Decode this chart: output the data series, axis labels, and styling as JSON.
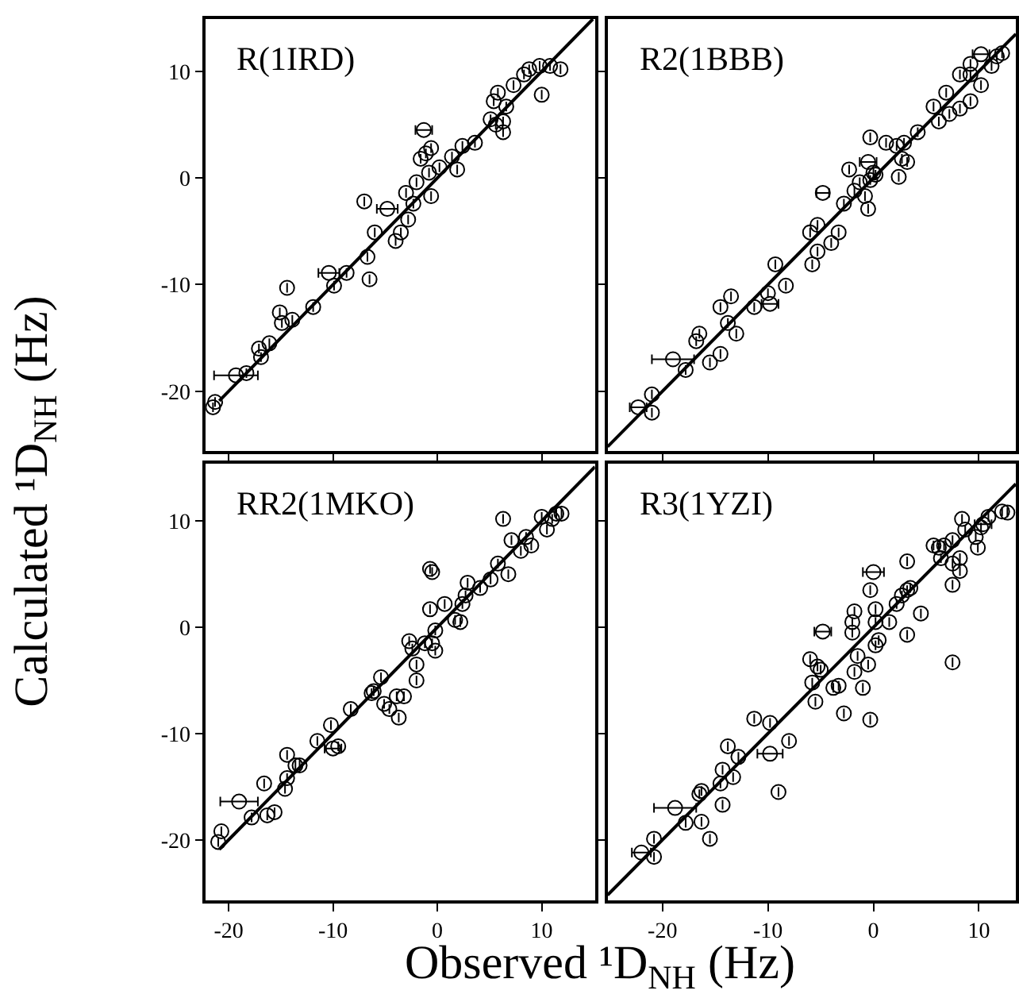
{
  "chart_data": [
    {
      "type": "scatter",
      "title": "R(1IRD)",
      "ylabel": "Calculated ¹D$_{NH}$ (Hz)",
      "xlim": [
        -22.2,
        15.1
      ],
      "ylim": [
        -25.6,
        14.9
      ],
      "xticks": [
        -20,
        -10,
        0,
        10
      ],
      "yticks": [
        -20,
        -10,
        0,
        10
      ],
      "tick_labels": "y",
      "series": [
        {
          "marker": "circle",
          "color": "#000000",
          "x": [
            -21.3,
            -21.5,
            -19.3,
            -18.3,
            -17.1,
            -16.9,
            -16.1,
            -15.1,
            -14.9,
            -13.9,
            -14.4,
            -11.9,
            -10.4,
            -9.9,
            -8.7,
            -6.7,
            -6.5,
            -6.0,
            -4.8,
            -7.0,
            -4.0,
            -3.5,
            -2.8,
            -3.0,
            -2.3,
            -2.0,
            -1.6,
            -0.8,
            -0.6,
            -1.1,
            -0.6,
            0.2,
            1.4,
            1.9,
            2.4,
            3.6,
            -1.3,
            5.1,
            5.6,
            6.3,
            6.6,
            6.3,
            5.8,
            5.4,
            7.3,
            8.3,
            8.8,
            9.8,
            10.8,
            11.8,
            10.0
          ],
          "values": [
            -21.0,
            -21.5,
            -18.5,
            -18.3,
            -16.0,
            -16.8,
            -15.5,
            -12.6,
            -13.6,
            -13.3,
            -10.3,
            -12.1,
            -8.9,
            -10.1,
            -8.9,
            -7.4,
            -9.5,
            -5.1,
            -2.9,
            -2.2,
            -5.9,
            -5.1,
            -3.9,
            -1.4,
            -2.4,
            -0.4,
            1.8,
            0.5,
            -1.7,
            2.3,
            2.8,
            1.0,
            2.0,
            0.8,
            3.0,
            3.3,
            4.5,
            5.5,
            5.0,
            5.3,
            6.7,
            4.3,
            8.0,
            7.2,
            8.7,
            9.7,
            10.2,
            10.5,
            10.5,
            10.2,
            7.8
          ],
          "xerrors": [
            null,
            null,
            2.1,
            null,
            null,
            null,
            null,
            null,
            null,
            null,
            null,
            null,
            1.0,
            null,
            null,
            null,
            null,
            null,
            1.0,
            null,
            null,
            null,
            null,
            null,
            null,
            null,
            null,
            null,
            null,
            null,
            null,
            null,
            null,
            null,
            null,
            null,
            0.8,
            null,
            null,
            null,
            null,
            null,
            null,
            null,
            null,
            null,
            null,
            null,
            null,
            null,
            null
          ]
        },
        {
          "type": "line",
          "color": "#000000",
          "line_style": "solid",
          "x": [
            -20.9,
            14.9
          ],
          "values": [
            -20.9,
            14.9
          ]
        }
      ]
    },
    {
      "type": "scatter",
      "title": "R2(1BBB)",
      "xlim": [
        -25.2,
        13.5
      ],
      "ylim": [
        -25.6,
        14.9
      ],
      "xticks": [
        -20,
        -10,
        0,
        10
      ],
      "yticks": [
        -20,
        -10,
        0,
        10
      ],
      "tick_labels": false,
      "series": [
        {
          "marker": "circle",
          "color": "#000000",
          "x": [
            -22.3,
            -21.0,
            -21.0,
            -19.0,
            -17.8,
            -16.5,
            -16.8,
            -15.5,
            -14.5,
            -14.5,
            -13.5,
            -13.8,
            -13.0,
            -11.3,
            -10.0,
            -9.8,
            -8.3,
            -9.3,
            -5.8,
            -5.3,
            -4.0,
            -3.3,
            -6.0,
            -5.3,
            -4.8,
            -2.8,
            -2.3,
            -1.8,
            -1.3,
            -0.5,
            -0.5,
            -0.3,
            0.0,
            -0.8,
            0.2,
            -0.3,
            1.2,
            2.2,
            2.9,
            2.7,
            3.2,
            2.4,
            4.2,
            6.2,
            5.7,
            7.2,
            8.2,
            6.9,
            8.2,
            9.2,
            9.2,
            10.2,
            9.2,
            10.2,
            11.2,
            11.7,
            12.2
          ],
          "values": [
            -21.5,
            -22.0,
            -20.3,
            -17.0,
            -18.0,
            -14.6,
            -15.3,
            -17.3,
            -16.5,
            -12.1,
            -11.1,
            -13.6,
            -14.6,
            -12.1,
            -10.8,
            -11.8,
            -10.1,
            -8.1,
            -8.1,
            -6.9,
            -6.1,
            -5.1,
            -5.1,
            -4.4,
            -1.4,
            -2.4,
            0.8,
            -1.2,
            -0.4,
            1.5,
            -2.9,
            -0.2,
            0.5,
            -1.7,
            0.3,
            3.8,
            3.3,
            3.0,
            3.3,
            1.8,
            1.5,
            0.1,
            4.3,
            5.3,
            6.7,
            6.0,
            6.5,
            8.0,
            9.7,
            7.2,
            9.7,
            8.7,
            10.7,
            11.6,
            10.5,
            11.4,
            11.7
          ],
          "xerrors": [
            0.8,
            null,
            null,
            2.0,
            null,
            null,
            null,
            null,
            null,
            null,
            null,
            null,
            null,
            null,
            null,
            0.8,
            null,
            null,
            null,
            null,
            null,
            null,
            null,
            null,
            0.6,
            null,
            null,
            null,
            null,
            0.8,
            null,
            null,
            null,
            null,
            null,
            null,
            null,
            null,
            null,
            null,
            null,
            null,
            null,
            null,
            null,
            null,
            null,
            null,
            null,
            null,
            null,
            null,
            null,
            0.8,
            null,
            null,
            null
          ]
        },
        {
          "type": "line",
          "color": "#000000",
          "line_style": "solid",
          "x": [
            -25.2,
            13.5
          ],
          "values": [
            -25.2,
            13.5
          ]
        }
      ]
    },
    {
      "type": "scatter",
      "title": "RR2(1MKO)",
      "xlabel": "Observed ¹D$_{NH}$ (Hz)",
      "xlim": [
        -22.2,
        15.1
      ],
      "ylim": [
        -25.7,
        15.4
      ],
      "xticks": [
        -20,
        -10,
        0,
        10
      ],
      "yticks": [
        -20,
        -10,
        0,
        10
      ],
      "series": [
        {
          "marker": "circle",
          "color": "#000000",
          "x": [
            -20.7,
            -21.0,
            -19.0,
            -17.8,
            -16.3,
            -15.6,
            -16.6,
            -14.4,
            -14.6,
            -14.4,
            -13.6,
            -13.2,
            -11.5,
            -10.0,
            -9.5,
            -10.2,
            -8.3,
            -6.3,
            -6.1,
            -5.4,
            -5.1,
            -4.6,
            -3.9,
            -3.2,
            -3.7,
            -2.7,
            -2.4,
            -2.0,
            -2.0,
            -0.5,
            -0.2,
            -1.2,
            -0.2,
            -0.7,
            0.7,
            1.7,
            2.2,
            2.4,
            2.7,
            2.9,
            4.1,
            5.1,
            5.8,
            6.8,
            -0.7,
            -0.5,
            7.1,
            8.5,
            9.0,
            8.0,
            10.0,
            11.0,
            11.4,
            11.9,
            6.3,
            10.5
          ],
          "values": [
            -19.2,
            -20.2,
            -16.4,
            -17.9,
            -17.7,
            -17.4,
            -14.7,
            -14.2,
            -15.2,
            -12.0,
            -13.0,
            -13.0,
            -10.7,
            -11.4,
            -11.2,
            -9.2,
            -7.7,
            -6.2,
            -6.0,
            -4.7,
            -7.2,
            -7.7,
            -6.5,
            -6.5,
            -8.5,
            -1.3,
            -2.0,
            -3.5,
            -5.0,
            -1.5,
            -2.2,
            -1.5,
            -0.3,
            1.7,
            2.2,
            0.7,
            0.5,
            2.2,
            3.0,
            4.2,
            3.7,
            4.5,
            6.0,
            5.0,
            5.5,
            5.2,
            8.2,
            8.5,
            7.7,
            7.2,
            10.4,
            10.2,
            10.7,
            10.7,
            10.2,
            9.2
          ],
          "xerrors": [
            null,
            null,
            1.8,
            null,
            null,
            null,
            null,
            null,
            null,
            null,
            null,
            null,
            null,
            0.8,
            null,
            null,
            null,
            null,
            null,
            null,
            null,
            null,
            null,
            null,
            null,
            null,
            null,
            null,
            null,
            null,
            null,
            null,
            null,
            null,
            null,
            null,
            null,
            null,
            null,
            null,
            null,
            null,
            null,
            null,
            null,
            null,
            null,
            null,
            null,
            null,
            null,
            null,
            null,
            null,
            null,
            null
          ]
        },
        {
          "type": "line",
          "color": "#000000",
          "line_style": "solid",
          "x": [
            -20.9,
            15.1
          ],
          "values": [
            -20.9,
            15.1
          ]
        }
      ]
    },
    {
      "type": "scatter",
      "title": "R3(1YZI)",
      "xlim": [
        -25.2,
        13.5
      ],
      "ylim": [
        -25.7,
        15.4
      ],
      "xticks": [
        -20,
        -10,
        0,
        10
      ],
      "yticks": [
        -20,
        -10,
        0,
        10
      ],
      "tick_labels": "x",
      "series": [
        {
          "marker": "circle",
          "color": "#000000",
          "x": [
            -22.0,
            -20.8,
            -20.8,
            -18.8,
            -17.8,
            -16.3,
            -15.5,
            -16.5,
            -16.3,
            -14.3,
            -14.5,
            -14.3,
            -13.3,
            -12.8,
            -13.8,
            -11.3,
            -9.8,
            -9.8,
            -8.0,
            -9.0,
            -6.0,
            -5.8,
            -5.3,
            -5.0,
            -5.5,
            -3.8,
            -3.3,
            -4.8,
            -2.8,
            -2.0,
            -2.0,
            -1.8,
            -1.5,
            -1.8,
            -1.0,
            -0.5,
            -0.3,
            0.0,
            -0.3,
            0.2,
            0.2,
            0.5,
            0.2,
            1.5,
            2.2,
            2.7,
            3.2,
            3.5,
            3.2,
            3.2,
            4.5,
            5.7,
            6.2,
            6.7,
            7.5,
            6.4,
            7.5,
            8.2,
            7.5,
            8.2,
            7.5,
            8.4,
            8.7,
            9.7,
            9.9,
            10.2,
            10.9,
            12.2,
            12.7,
            10.4
          ],
          "values": [
            -21.2,
            -19.9,
            -21.6,
            -17.0,
            -18.4,
            -18.3,
            -19.9,
            -15.7,
            -15.4,
            -16.7,
            -14.7,
            -13.4,
            -14.1,
            -12.2,
            -11.2,
            -8.6,
            -9.0,
            -11.9,
            -10.7,
            -15.5,
            -3.0,
            -5.2,
            -3.7,
            -4.0,
            -7.0,
            -5.7,
            -5.5,
            -0.4,
            -8.1,
            0.5,
            -0.5,
            1.5,
            -2.7,
            -4.2,
            -5.7,
            -3.5,
            -8.7,
            5.2,
            3.5,
            1.7,
            0.5,
            -1.2,
            -1.7,
            0.5,
            2.2,
            3.0,
            3.5,
            3.7,
            6.2,
            -0.7,
            1.3,
            7.7,
            7.5,
            7.7,
            8.2,
            6.5,
            6.0,
            6.5,
            4.0,
            5.3,
            -3.3,
            10.2,
            9.2,
            8.5,
            7.5,
            9.4,
            10.4,
            10.9,
            10.8,
            9.7
          ],
          "xerrors": [
            0.9,
            null,
            null,
            2.0,
            null,
            null,
            null,
            null,
            null,
            null,
            null,
            null,
            null,
            null,
            null,
            null,
            null,
            1.2,
            null,
            null,
            null,
            null,
            null,
            null,
            null,
            null,
            null,
            0.8,
            null,
            null,
            null,
            null,
            null,
            null,
            null,
            null,
            null,
            1.0,
            null,
            null,
            null,
            null,
            null,
            null,
            null,
            null,
            null,
            null,
            null,
            null,
            null,
            null,
            null,
            null,
            null,
            null,
            null,
            null,
            null,
            null,
            null,
            null,
            null,
            null,
            null,
            null,
            null,
            null,
            null,
            0.8
          ]
        },
        {
          "type": "line",
          "color": "#000000",
          "line_style": "solid",
          "x": [
            -25.2,
            13.5
          ],
          "values": [
            -25.2,
            13.5
          ]
        }
      ]
    }
  ]
}
